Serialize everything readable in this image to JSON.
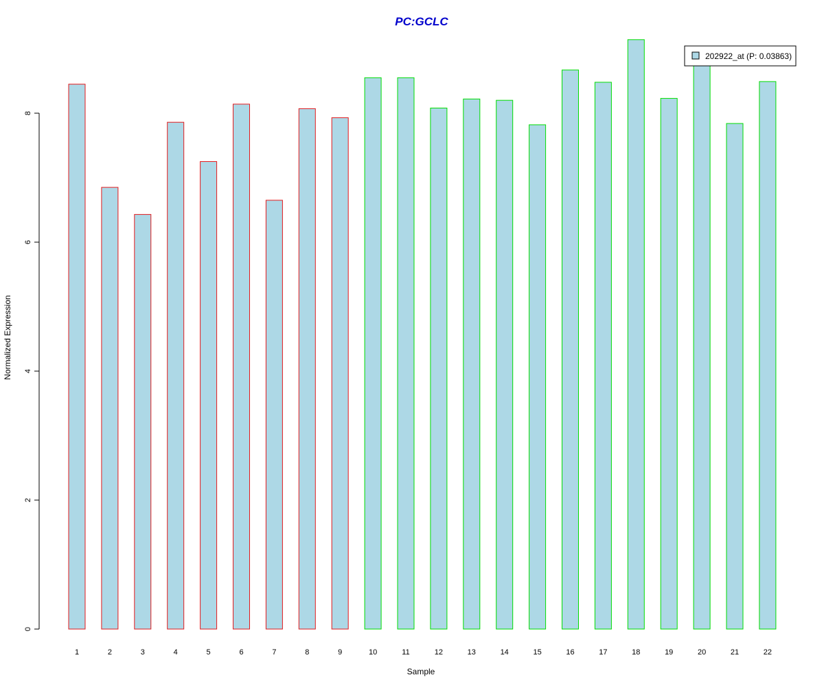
{
  "chart_data": {
    "type": "bar",
    "title": "PC:GCLC",
    "xlabel": "Sample",
    "ylabel": "Normalized Expression",
    "categories": [
      "1",
      "2",
      "3",
      "4",
      "5",
      "6",
      "7",
      "8",
      "9",
      "10",
      "11",
      "12",
      "13",
      "14",
      "15",
      "16",
      "17",
      "18",
      "19",
      "20",
      "21",
      "22"
    ],
    "series": [
      {
        "name": "202922_at (P: 0.03863)",
        "values": [
          8.45,
          6.85,
          6.43,
          7.86,
          7.25,
          8.14,
          6.65,
          8.07,
          7.93,
          8.55,
          8.55,
          8.08,
          8.22,
          8.2,
          7.82,
          8.67,
          8.48,
          9.14,
          8.23,
          8.76,
          7.84,
          8.49
        ]
      }
    ],
    "group_border_colors": [
      "#e31a1c",
      "#e31a1c",
      "#e31a1c",
      "#e31a1c",
      "#e31a1c",
      "#e31a1c",
      "#e31a1c",
      "#e31a1c",
      "#e31a1c",
      "#00dd00",
      "#00dd00",
      "#00dd00",
      "#00dd00",
      "#00dd00",
      "#00dd00",
      "#00dd00",
      "#00dd00",
      "#00dd00",
      "#00dd00",
      "#00dd00",
      "#00dd00",
      "#00dd00"
    ],
    "bar_fill_color": "#add8e6",
    "title_color": "#0000cc",
    "ylim": [
      0,
      9.2
    ],
    "yticks": [
      0,
      2,
      4,
      6,
      8
    ],
    "grid": false,
    "legend_position": "top-right"
  }
}
